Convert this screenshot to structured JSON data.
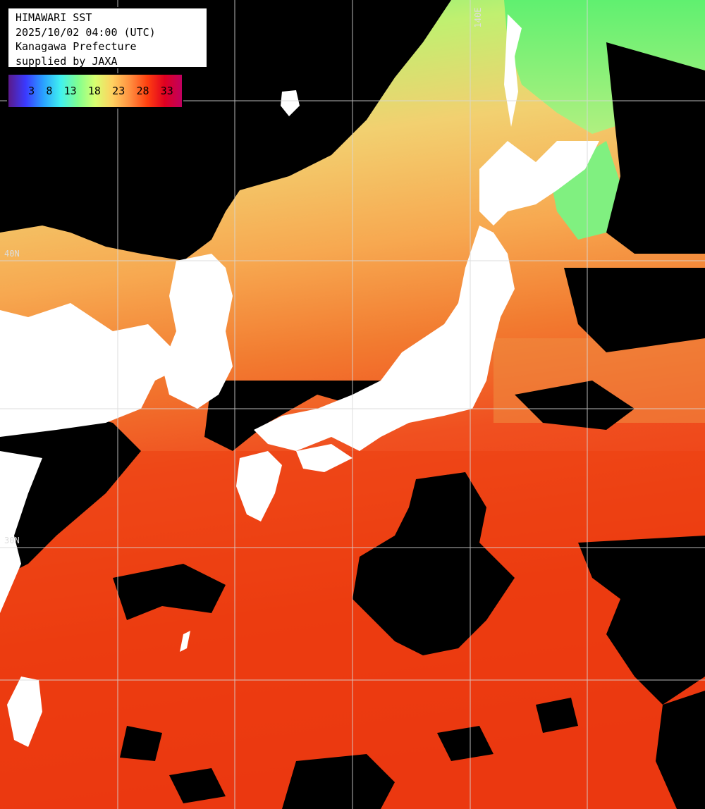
{
  "title": "HIMAWARI SST",
  "datetime": "2025/10/02 04:00 (UTC)",
  "region": "Kanagawa Prefecture",
  "credit": "supplied by JAXA",
  "colorbar": {
    "ticks": [
      "3",
      "8",
      "13",
      "18",
      "23",
      "28",
      "33"
    ],
    "stops": [
      "#5a1a8a",
      "#3a3aff",
      "#2aa0ff",
      "#40f0f0",
      "#80ff90",
      "#d8ff70",
      "#ffd060",
      "#ff9040",
      "#ff4010",
      "#e00020",
      "#c00060"
    ]
  },
  "labels": {
    "lon_140": "140E",
    "lat_40": "40N",
    "lat_30": "30N"
  },
  "colors": {
    "land": "#ffffff",
    "cloud": "#000000",
    "grid": "#d8d8d8"
  }
}
